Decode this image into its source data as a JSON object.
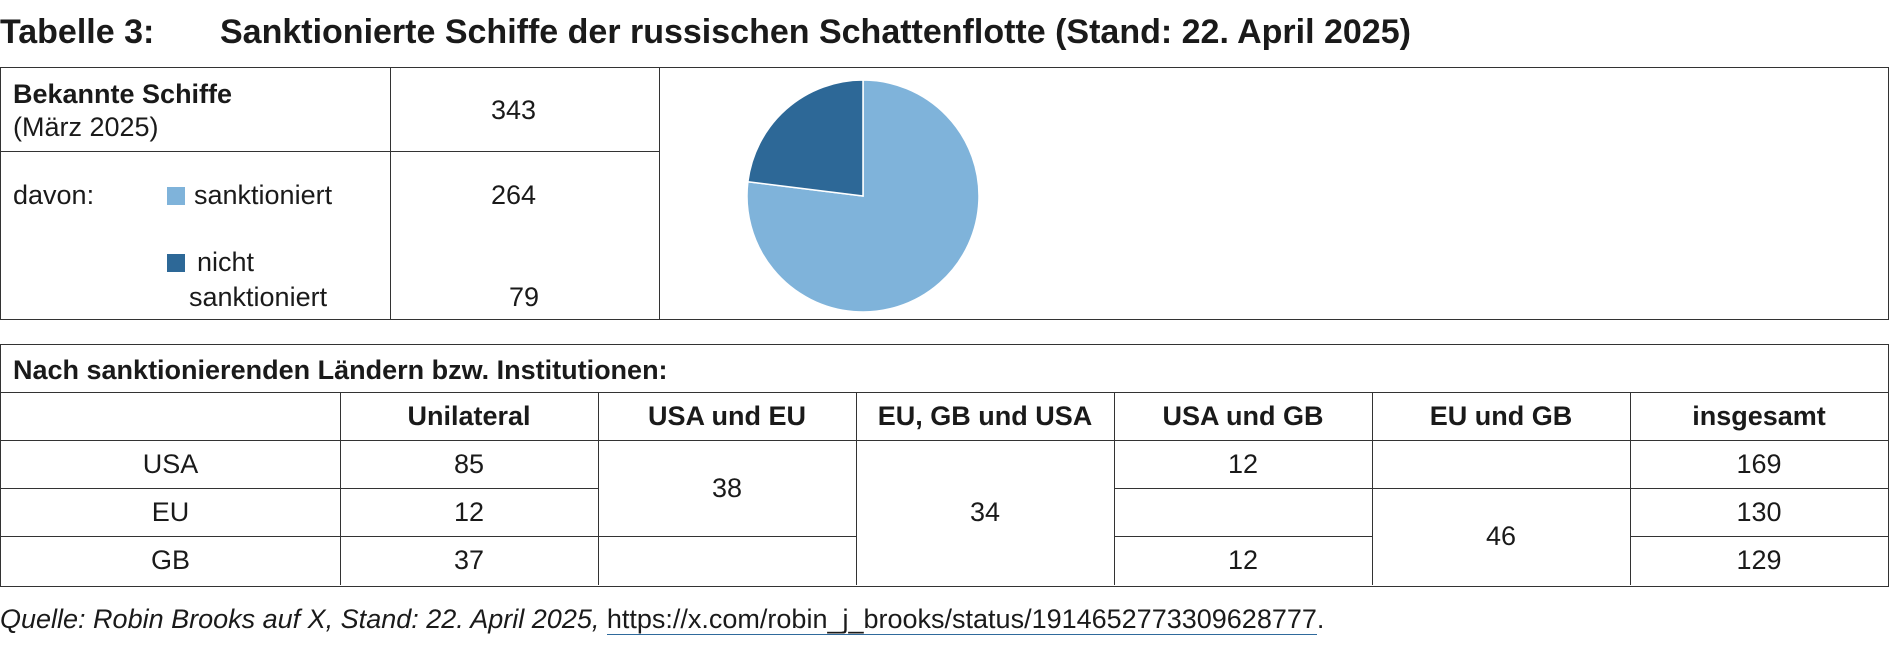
{
  "title": {
    "label": "Tabelle 3:",
    "text": "Sanktionierte Schiffe der russischen Schattenflotte (Stand: 22. April 2025)"
  },
  "summary": {
    "known_label": "Bekannte Schiffe",
    "known_sub": "(März 2025)",
    "known_value": "343",
    "davon": "davon:",
    "sanctioned_label": "sanktioniert",
    "sanctioned_value": "264",
    "not_sanctioned_line1": "nicht",
    "not_sanctioned_line2": "sanktioniert",
    "not_sanctioned_value": "79"
  },
  "colors": {
    "sanctioned": "#7fb3da",
    "not_sanctioned": "#2d6897",
    "border": "#333333"
  },
  "chart_data": {
    "type": "pie",
    "labels": [
      "sanktioniert",
      "nicht sanktioniert"
    ],
    "values": [
      264,
      79
    ],
    "colors": [
      "#7fb3da",
      "#2d6897"
    ]
  },
  "table": {
    "header": "Nach sanktionierenden Ländern bzw. Institutionen:",
    "columns": [
      "",
      "Unilateral",
      "USA und EU",
      "EU, GB und USA",
      "USA und GB",
      "EU und GB",
      "insgesamt"
    ],
    "rows": [
      {
        "name": "USA",
        "unilateral": "85",
        "usa_gb": "12",
        "total": "169"
      },
      {
        "name": "EU",
        "unilateral": "12",
        "total": "130"
      },
      {
        "name": "GB",
        "unilateral": "37",
        "usa_gb": "12",
        "total": "129"
      }
    ],
    "merged": {
      "usa_eu": "38",
      "eu_gb_usa": "34",
      "eu_gb": "46"
    }
  },
  "source": {
    "text": "Quelle: Robin Brooks auf X, Stand: 22. April 2025,",
    "url": "https://x.com/robin_j_brooks/status/1914652773309628777",
    "end": "."
  }
}
